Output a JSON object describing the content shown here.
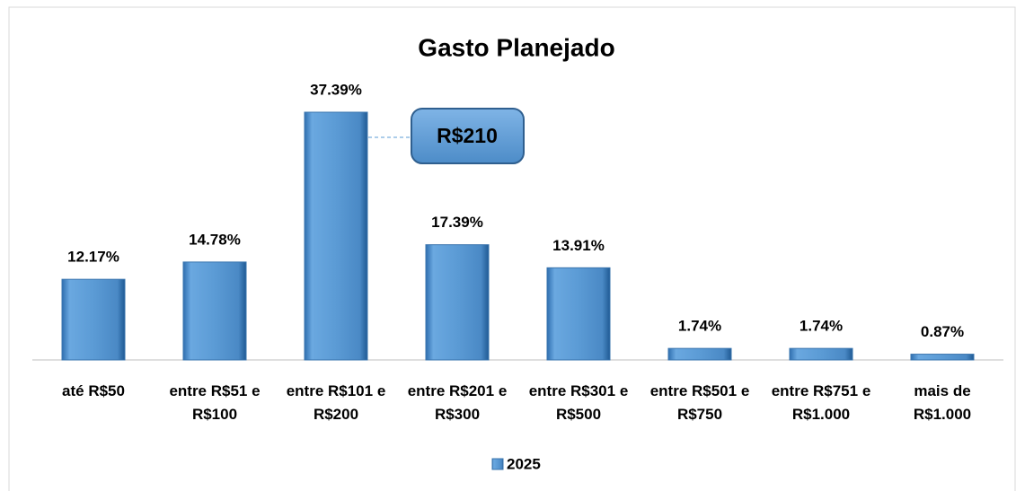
{
  "chart_data": {
    "type": "bar",
    "title": "Gasto Planejado",
    "categories": [
      "até R$50",
      "entre R$51 e R$100",
      "entre R$101 e R$200",
      "entre R$201 e R$300",
      "entre R$301 e R$500",
      "entre R$501 e R$750",
      "entre R$751 e R$1.000",
      "mais de R$1.000"
    ],
    "series": [
      {
        "name": "2025",
        "color": "#5b9bd5",
        "values": [
          12.17,
          14.78,
          37.39,
          17.39,
          13.91,
          1.74,
          1.74,
          0.87
        ],
        "value_labels": [
          "12.17%",
          "14.78%",
          "37.39%",
          "17.39%",
          "13.91%",
          "1.74%",
          "1.74%",
          "0.87%"
        ]
      }
    ],
    "annotation": "R$210",
    "legend": "bottom"
  }
}
